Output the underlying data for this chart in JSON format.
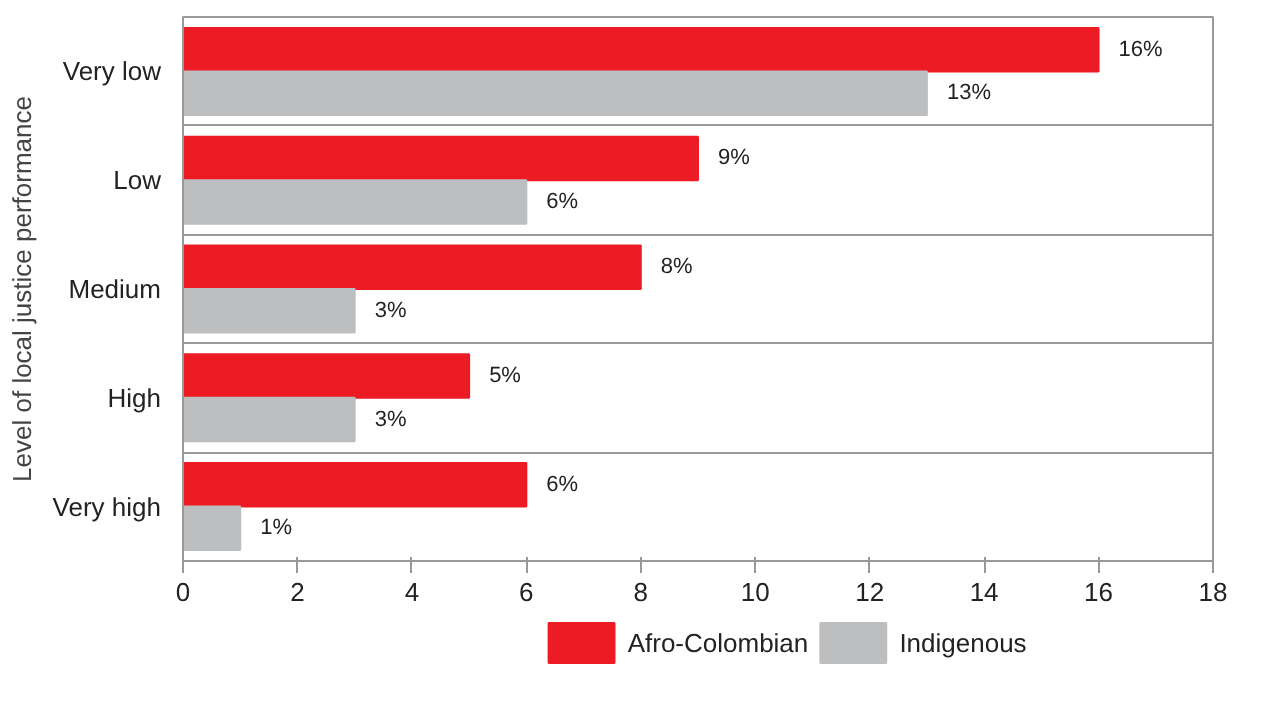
{
  "chart_data": {
    "type": "bar",
    "orientation": "horizontal",
    "ylabel": "Level of local justice performance",
    "categories": [
      "Very low",
      "Low",
      "Medium",
      "High",
      "Very high"
    ],
    "series": [
      {
        "name": "Afro-Colombian",
        "color": "#ed1c24",
        "values": [
          16,
          9,
          8,
          5,
          6
        ],
        "value_labels": [
          "16%",
          "9%",
          "8%",
          "5%",
          "6%"
        ]
      },
      {
        "name": "Indigenous",
        "color": "#bcbec0",
        "values": [
          13,
          6,
          3,
          3,
          1
        ],
        "value_labels": [
          "13%",
          "6%",
          "3%",
          "3%",
          "1%"
        ]
      }
    ],
    "xlim": [
      0,
      18
    ],
    "xticks": [
      0,
      2,
      4,
      6,
      8,
      10,
      12,
      14,
      16,
      18
    ],
    "grid": "y",
    "legend": "bottom"
  }
}
